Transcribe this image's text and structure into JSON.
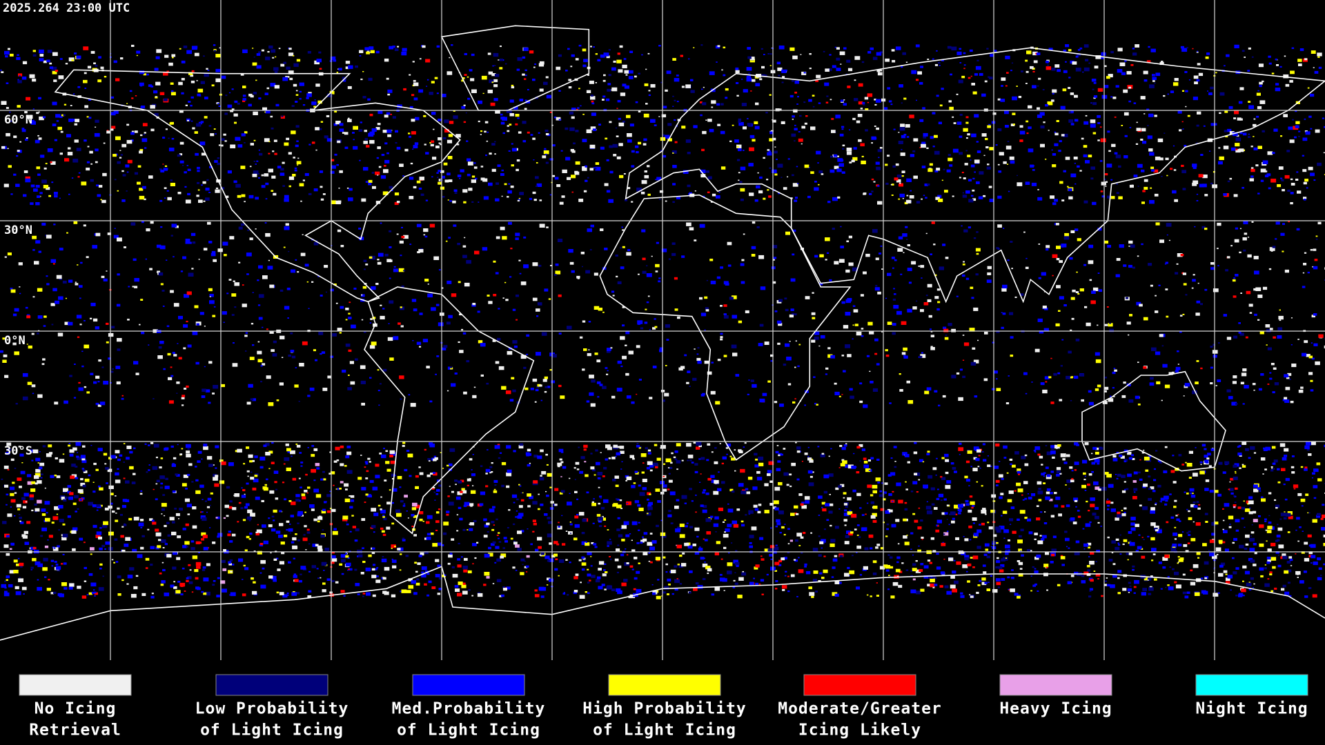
{
  "timestamp": "2025.264 23:00 UTC",
  "latitude_labels": [
    "60°N",
    "30°N",
    "0°N",
    "30°S"
  ],
  "legend": [
    {
      "lines": [
        "No Icing",
        "Retrieval"
      ],
      "color": "#f0f0f0"
    },
    {
      "lines": [
        "Low Probability",
        "of Light Icing"
      ],
      "color": "#00007a"
    },
    {
      "lines": [
        "Med.Probability",
        "of Light Icing"
      ],
      "color": "#0000ff"
    },
    {
      "lines": [
        "High Probability",
        "of Light Icing"
      ],
      "color": "#ffff00"
    },
    {
      "lines": [
        "Moderate/Greater",
        "Icing Likely"
      ],
      "color": "#ff0000"
    },
    {
      "lines": [
        "Heavy Icing"
      ],
      "color": "#e8a0e8"
    },
    {
      "lines": [
        "Night Icing"
      ],
      "color": "#00ffff"
    }
  ]
}
